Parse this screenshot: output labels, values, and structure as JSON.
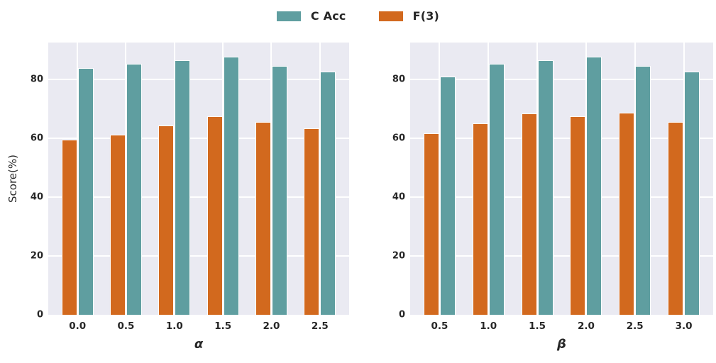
{
  "figure": {
    "background": "#ffffff",
    "plot_background": "#eaeaf2",
    "grid_color": "#ffffff",
    "text_color": "#262626",
    "legend": [
      {
        "label": "C Acc",
        "color": "#5f9ea0"
      },
      {
        "label": "F(3)",
        "color": "#d2691e"
      }
    ],
    "legend_position": "top-center",
    "legend_frame": false
  },
  "chart_data": [
    {
      "type": "bar",
      "title": "",
      "xlabel": "α",
      "ylabel": "Score(%)",
      "categories": [
        "0.0",
        "0.5",
        "1.0",
        "1.5",
        "2.0",
        "2.5"
      ],
      "series": [
        {
          "name": "F(3)",
          "color": "#d2691e",
          "values": [
            59.5,
            61.2,
            64.2,
            67.4,
            65.5,
            63.3
          ]
        },
        {
          "name": "C Acc",
          "color": "#5f9ea0",
          "values": [
            83.8,
            85.3,
            86.6,
            87.8,
            84.5,
            82.6
          ]
        }
      ],
      "bar_order_left_to_right": [
        "F(3)",
        "C Acc"
      ],
      "ylim": [
        0,
        92.5
      ],
      "yticks": [
        0,
        20,
        40,
        60,
        80
      ],
      "grid": true
    },
    {
      "type": "bar",
      "title": "",
      "xlabel": "β",
      "ylabel": "",
      "categories": [
        "0.5",
        "1.0",
        "1.5",
        "2.0",
        "2.5",
        "3.0"
      ],
      "series": [
        {
          "name": "F(3)",
          "color": "#d2691e",
          "values": [
            61.6,
            65.0,
            68.4,
            67.4,
            68.6,
            65.5
          ]
        },
        {
          "name": "C Acc",
          "color": "#5f9ea0",
          "values": [
            81.0,
            85.2,
            86.6,
            87.8,
            84.5,
            82.7
          ]
        }
      ],
      "bar_order_left_to_right": [
        "F(3)",
        "C Acc"
      ],
      "ylim": [
        0,
        92.5
      ],
      "yticks": [
        0,
        20,
        40,
        60,
        80
      ],
      "grid": true
    }
  ]
}
